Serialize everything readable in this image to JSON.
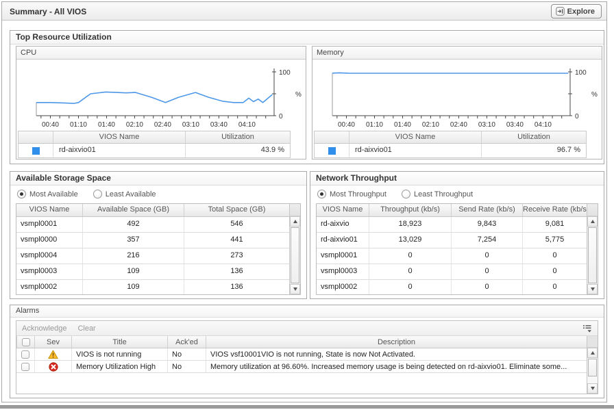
{
  "titlebar": {
    "title": "Summary - All VIOS",
    "explore_label": "Explore"
  },
  "top_resource": {
    "title": "Top Resource Utilization",
    "cpu": {
      "title": "CPU",
      "legend": {
        "columns": [
          "VIOS Name",
          "Utilization"
        ],
        "rows": [
          {
            "name": "rd-aixvio01",
            "value": "43.9 %",
            "color": "#2f8fea"
          }
        ]
      }
    },
    "memory": {
      "title": "Memory",
      "legend": {
        "columns": [
          "VIOS Name",
          "Utilization"
        ],
        "rows": [
          {
            "name": "rd-aixvio01",
            "value": "96.7 %",
            "color": "#2f8fea"
          }
        ]
      }
    }
  },
  "chart_data": [
    {
      "type": "line",
      "title": "CPU",
      "unit": "%",
      "ylim": [
        0,
        100
      ],
      "y_ticks": [
        0,
        50,
        100
      ],
      "grid": false,
      "x_range_minutes": [
        25,
        279
      ],
      "minor_ticks": {
        "from": 30,
        "to": 270,
        "step": 10
      },
      "x_ticks": [
        {
          "t": 40,
          "label": "00:40"
        },
        {
          "t": 70,
          "label": "01:10"
        },
        {
          "t": 100,
          "label": "01:40"
        },
        {
          "t": 130,
          "label": "02:10"
        },
        {
          "t": 160,
          "label": "02:40"
        },
        {
          "t": 190,
          "label": "03:10"
        },
        {
          "t": 220,
          "label": "03:40"
        },
        {
          "t": 250,
          "label": "04:10"
        }
      ],
      "series": [
        {
          "name": "rd-aixvio01",
          "color": "#4e97e8",
          "points": [
            [
              25,
              30
            ],
            [
              40,
              30
            ],
            [
              55,
              29
            ],
            [
              65,
              28
            ],
            [
              70,
              30
            ],
            [
              83,
              50
            ],
            [
              99,
              54
            ],
            [
              111,
              53
            ],
            [
              121,
              52
            ],
            [
              131,
              53
            ],
            [
              148,
              42
            ],
            [
              163,
              30
            ],
            [
              177,
              42
            ],
            [
              195,
              53
            ],
            [
              209,
              42
            ],
            [
              224,
              33
            ],
            [
              236,
              30
            ],
            [
              246,
              30
            ],
            [
              252,
              40
            ],
            [
              257,
              32
            ],
            [
              262,
              38
            ],
            [
              267,
              30
            ],
            [
              277,
              48
            ]
          ]
        }
      ]
    },
    {
      "type": "line",
      "title": "Memory",
      "unit": "%",
      "ylim": [
        0,
        100
      ],
      "y_ticks": [
        0,
        50,
        100
      ],
      "grid": false,
      "x_range_minutes": [
        25,
        279
      ],
      "minor_ticks": {
        "from": 30,
        "to": 270,
        "step": 10
      },
      "x_ticks": [
        {
          "t": 40,
          "label": "00:40"
        },
        {
          "t": 70,
          "label": "01:10"
        },
        {
          "t": 100,
          "label": "01:40"
        },
        {
          "t": 130,
          "label": "02:10"
        },
        {
          "t": 160,
          "label": "02:40"
        },
        {
          "t": 190,
          "label": "03:10"
        },
        {
          "t": 220,
          "label": "03:40"
        },
        {
          "t": 250,
          "label": "04:10"
        }
      ],
      "series": [
        {
          "name": "rd-aixvio01",
          "color": "#4e97e8",
          "points": [
            [
              25,
              97.2
            ],
            [
              33,
              97.8
            ],
            [
              42,
              97.0
            ],
            [
              60,
              96.8
            ],
            [
              100,
              96.8
            ],
            [
              150,
              96.9
            ],
            [
              200,
              96.8
            ],
            [
              250,
              96.8
            ],
            [
              277,
              96.8
            ]
          ]
        }
      ]
    }
  ],
  "storage": {
    "title": "Available Storage Space",
    "radios": [
      {
        "label": "Most Available",
        "selected": true
      },
      {
        "label": "Least Available",
        "selected": false
      }
    ],
    "columns": [
      "VIOS Name",
      "Available Space (GB)",
      "Total Space (GB)"
    ],
    "rows": [
      [
        "vsmpl0001",
        "492",
        "546"
      ],
      [
        "vsmpl0000",
        "357",
        "441"
      ],
      [
        "vsmpl0004",
        "216",
        "273"
      ],
      [
        "vsmpl0003",
        "109",
        "136"
      ],
      [
        "vsmpl0002",
        "109",
        "136"
      ]
    ]
  },
  "network": {
    "title": "Network Throughput",
    "radios": [
      {
        "label": "Most Throughput",
        "selected": true
      },
      {
        "label": "Least Throughput",
        "selected": false
      }
    ],
    "columns": [
      "VIOS Name",
      "Throughput (kb/s)",
      "Send Rate (kb/s)",
      "Receive Rate (kb/s)"
    ],
    "rows": [
      [
        "rd-aixvio",
        "18,923",
        "9,843",
        "9,081"
      ],
      [
        "rd-aixvio01",
        "13,029",
        "7,254",
        "5,775"
      ],
      [
        "vsmpl0001",
        "0",
        "0",
        "0"
      ],
      [
        "vsmpl0003",
        "0",
        "0",
        "0"
      ],
      [
        "vsmpl0002",
        "0",
        "0",
        "0"
      ]
    ]
  },
  "alarms": {
    "title": "Alarms",
    "toolbar": {
      "acknowledge": "Acknowledge",
      "clear": "Clear"
    },
    "columns": [
      "",
      "Sev",
      "Title",
      "Ack'ed",
      "Description"
    ],
    "rows": [
      {
        "severity": "warning",
        "title": "VIOS is not running",
        "acked": "No",
        "description": "VIOS vsf10001VIO is not running, State is now Not Activated."
      },
      {
        "severity": "error",
        "title": "Memory Utilization High",
        "acked": "No",
        "description": "Memory utilization at 96.60%. Increased memory usage is being detected on rd-aixvio01. Eliminate some..."
      }
    ]
  },
  "colors": {
    "chart_line": "#4e97e8",
    "legend_swatch": "#2f8fea",
    "warning": "#FDBA2C",
    "error": "#D62B1F"
  }
}
